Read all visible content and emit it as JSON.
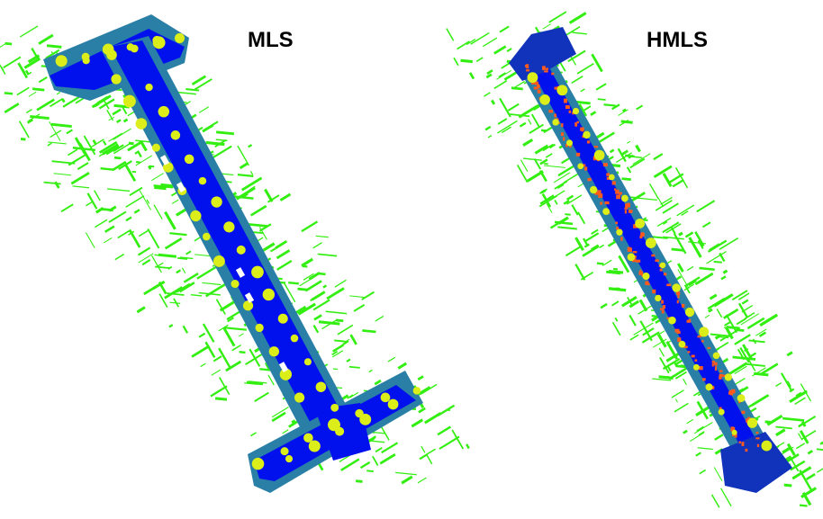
{
  "panels": [
    {
      "label": "MLS"
    },
    {
      "label": "HMLS"
    }
  ],
  "legend_colors": {
    "vegetation_buildings": "#33ee11",
    "road": "#0011ee",
    "sidewalk": "#2a7fa6",
    "trees": "#dcee1a",
    "vehicles_poles": "#ff5a1e",
    "noise": "#1133bb"
  }
}
